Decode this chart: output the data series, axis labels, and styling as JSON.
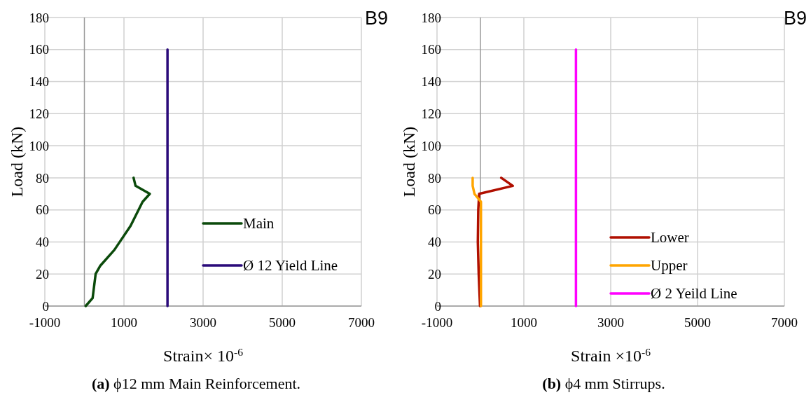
{
  "chart_data": [
    {
      "type": "line",
      "title": "(a) ϕ12 mm Main Reinforcement.",
      "xlabel": "Strain× 10$^{-6}$",
      "ylabel": "Load (kN)",
      "annotations": [
        "B9"
      ],
      "xlim": [
        -1000,
        7000
      ],
      "xticks": [
        -1000,
        1000,
        3000,
        5000,
        7000
      ],
      "ylim": [
        0,
        180
      ],
      "yticks": [
        0,
        20,
        40,
        60,
        80,
        100,
        120,
        140,
        160,
        180
      ],
      "grid": true,
      "legend": "bottom right",
      "line_style": "solid",
      "series": [
        {
          "name": "Main",
          "color": "#0b4a0b",
          "x": [
            32,
            208,
            284,
            397,
            757,
            1167,
            1470,
            1653,
            1293,
            1243
          ],
          "values": [
            0,
            5,
            20,
            25,
            35,
            50,
            65,
            70,
            75,
            80
          ]
        },
        {
          "name": "Ø 12 Yield Line",
          "color": "#2a0a7a",
          "x": [
            2100,
            2100
          ],
          "values": [
            0,
            160
          ]
        }
      ]
    },
    {
      "type": "line",
      "title": "(b) ϕ4 mm Stirrups.",
      "xlabel": "Strain ×10$^{-6}$",
      "ylabel": "Load (kN)",
      "annotations": [
        "B9"
      ],
      "xlim": [
        -1000,
        7000
      ],
      "xticks": [
        -1000,
        1000,
        3000,
        5000,
        7000
      ],
      "ylim": [
        0,
        180
      ],
      "yticks": [
        0,
        20,
        40,
        60,
        80,
        100,
        120,
        140,
        160,
        180
      ],
      "grid": true,
      "legend": "bottom right",
      "line_style": "solid",
      "series": [
        {
          "name": "Lower",
          "color": "#b00f00",
          "x": [
            -10,
            -40,
            -60,
            -50,
            -30,
            746,
            478
          ],
          "values": [
            0,
            20,
            40,
            60,
            70,
            75,
            80
          ]
        },
        {
          "name": "Upper",
          "color": "#ffa500",
          "x": [
            12,
            12,
            12,
            -137,
            -179,
            -179
          ],
          "values": [
            0,
            30,
            65,
            70,
            75,
            80
          ]
        },
        {
          "name": "Ø 2 Yeild Line",
          "color": "#ff00ff",
          "x": [
            2200,
            2200
          ],
          "values": [
            0,
            160
          ]
        }
      ]
    }
  ]
}
